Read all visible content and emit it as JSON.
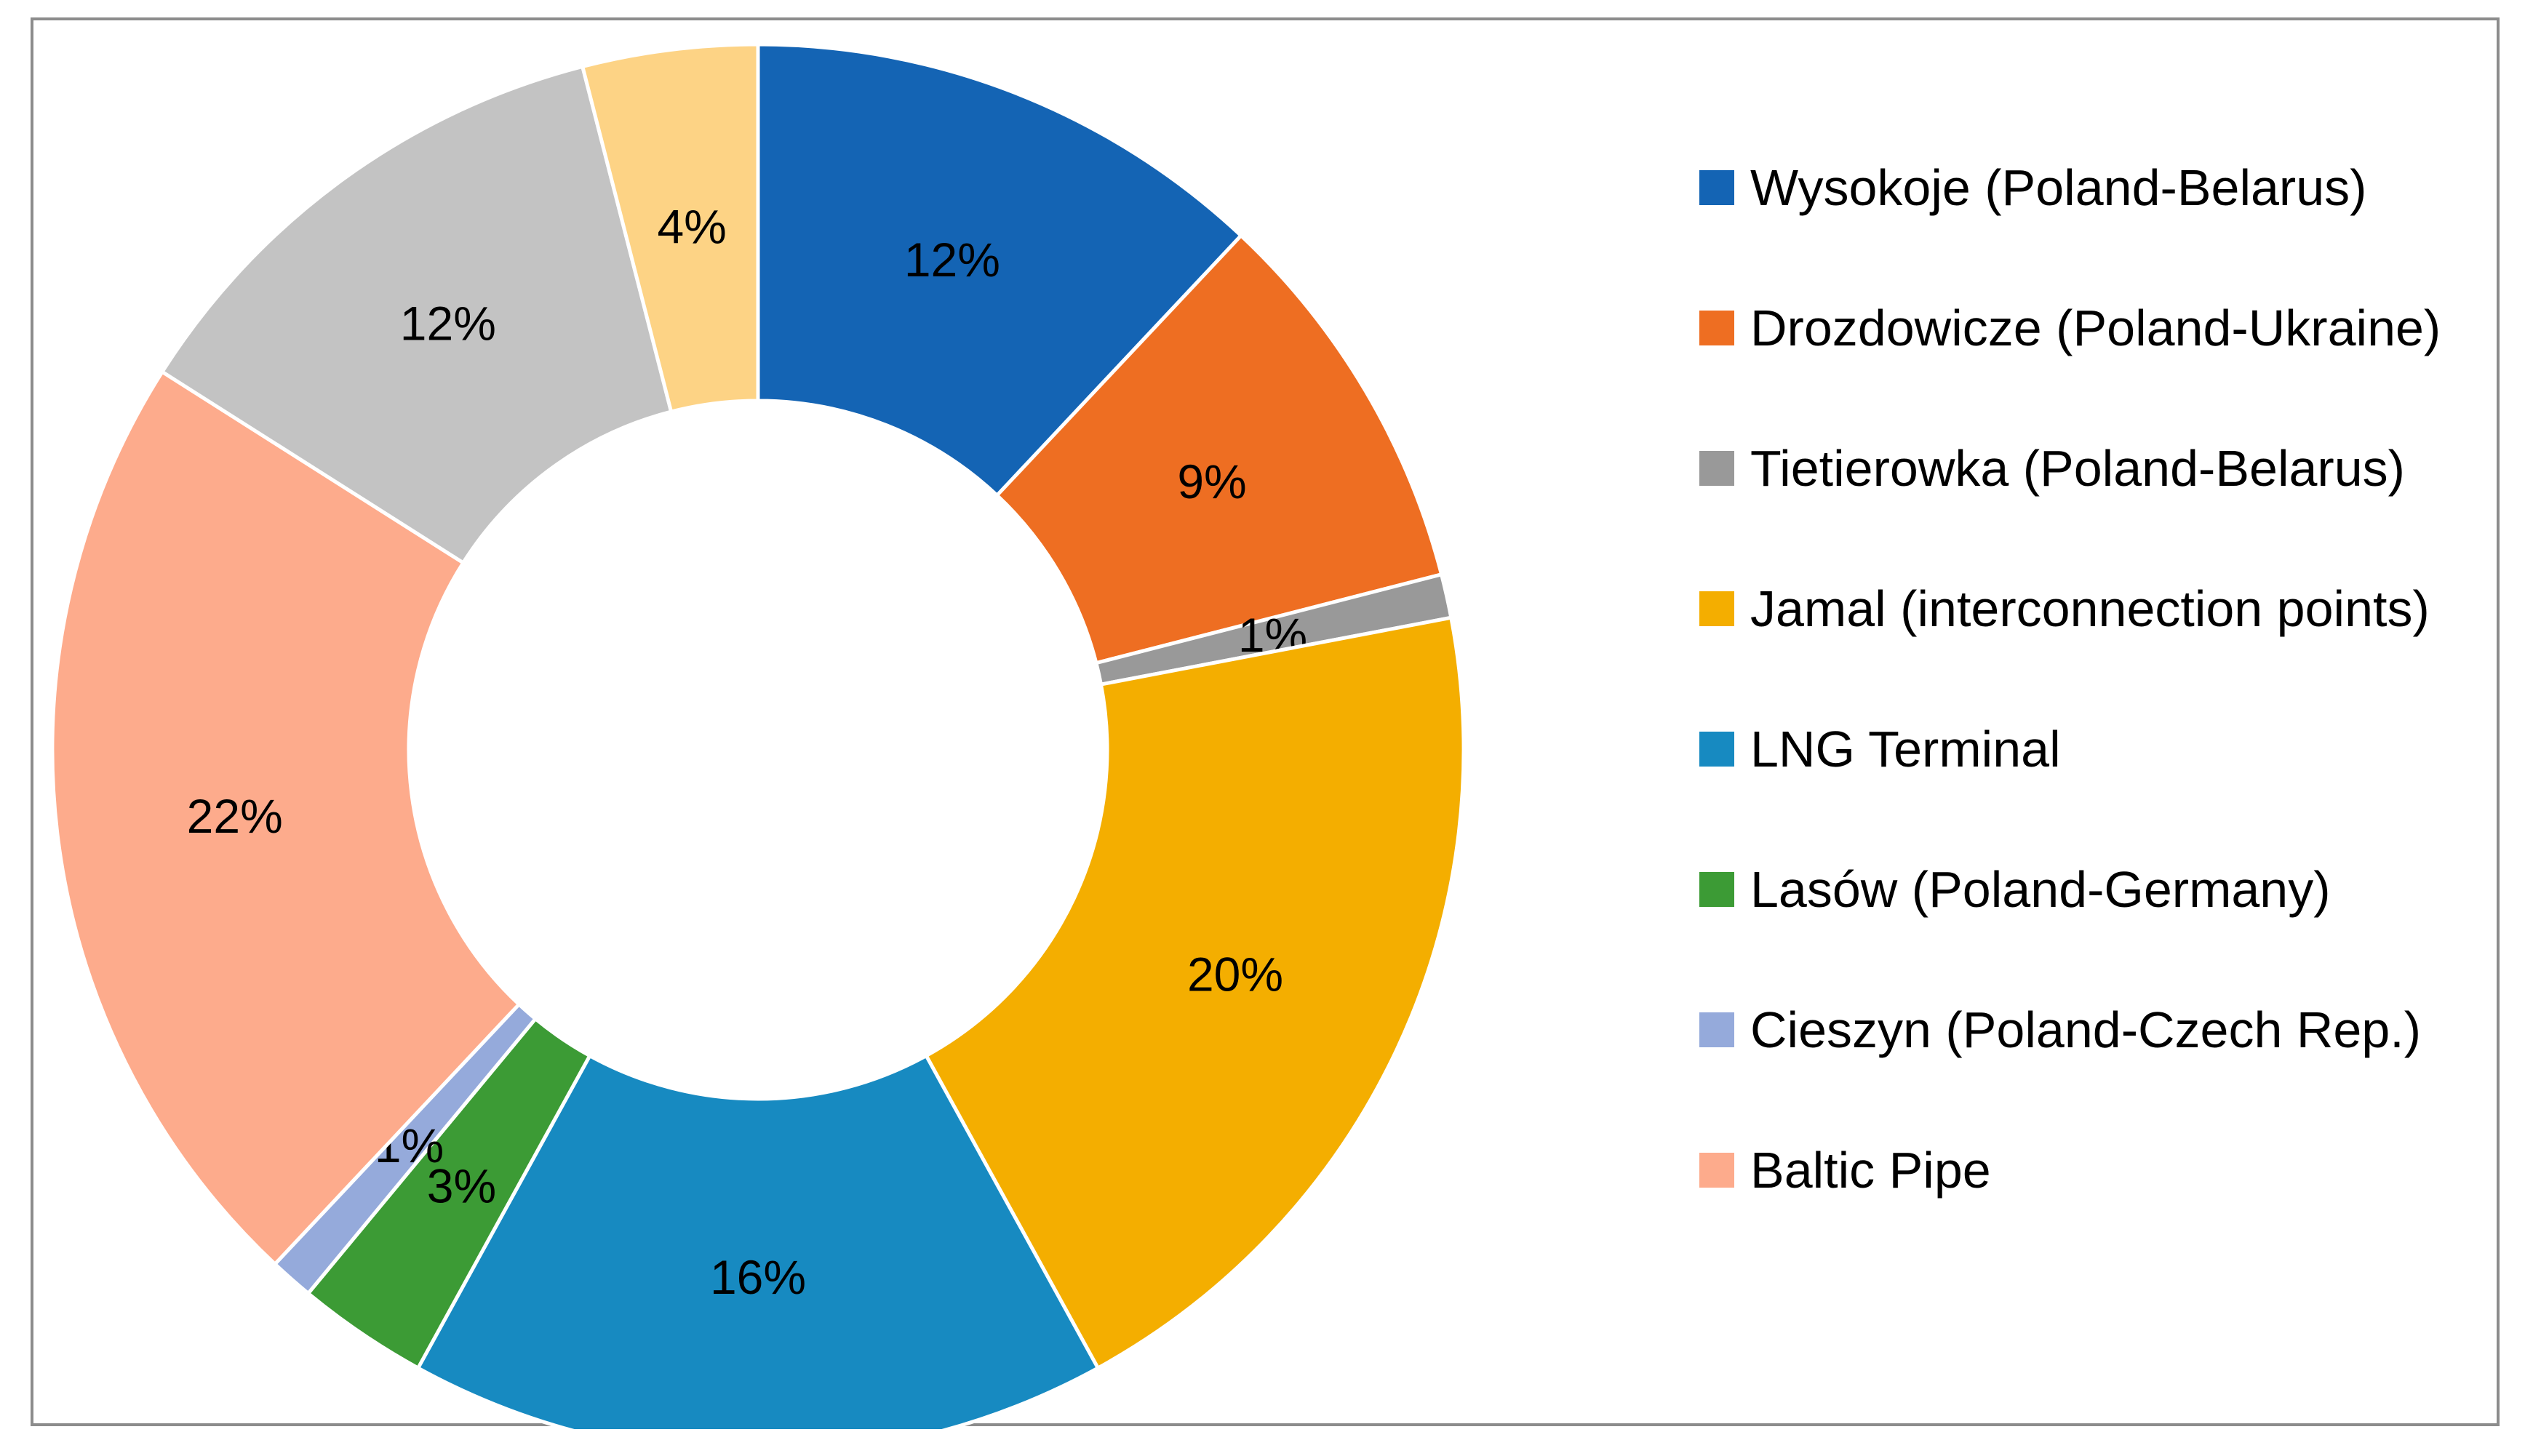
{
  "chart_data": {
    "type": "pie",
    "style": "donut",
    "title": "",
    "legend_position": "right",
    "start": "12 o'clock, clockwise",
    "slices": [
      {
        "name": "Wysokoje (Poland-Belarus)",
        "value": 12,
        "label": "12%",
        "color": "#1464B4"
      },
      {
        "name": "Drozdowicze (Poland-Ukraine)",
        "value": 9,
        "label": "9%",
        "color": "#EE6E22"
      },
      {
        "name": "Tietierowka (Poland-Belarus)",
        "value": 1,
        "label": "1%",
        "color": "#999999"
      },
      {
        "name": "Jamal (interconnection points)",
        "value": 20,
        "label": "20%",
        "color": "#F4AE00"
      },
      {
        "name": "LNG Terminal",
        "value": 16,
        "label": "16%",
        "color": "#178AC1"
      },
      {
        "name": "Lasów (Poland-Germany)",
        "value": 3,
        "label": "3%",
        "color": "#3C9B35"
      },
      {
        "name": "Cieszyn (Poland-Czech Rep.)",
        "value": 1,
        "label": "1%",
        "color": "#95AADB"
      },
      {
        "name": "Baltic Pipe",
        "value": 22,
        "label": "22%",
        "color": "#FDAB8C"
      },
      {
        "name": "",
        "value": 12,
        "label": "12%",
        "color": "#C3C3C3"
      },
      {
        "name": "",
        "value": 4,
        "label": "4%",
        "color": "#FDD385"
      }
    ]
  }
}
